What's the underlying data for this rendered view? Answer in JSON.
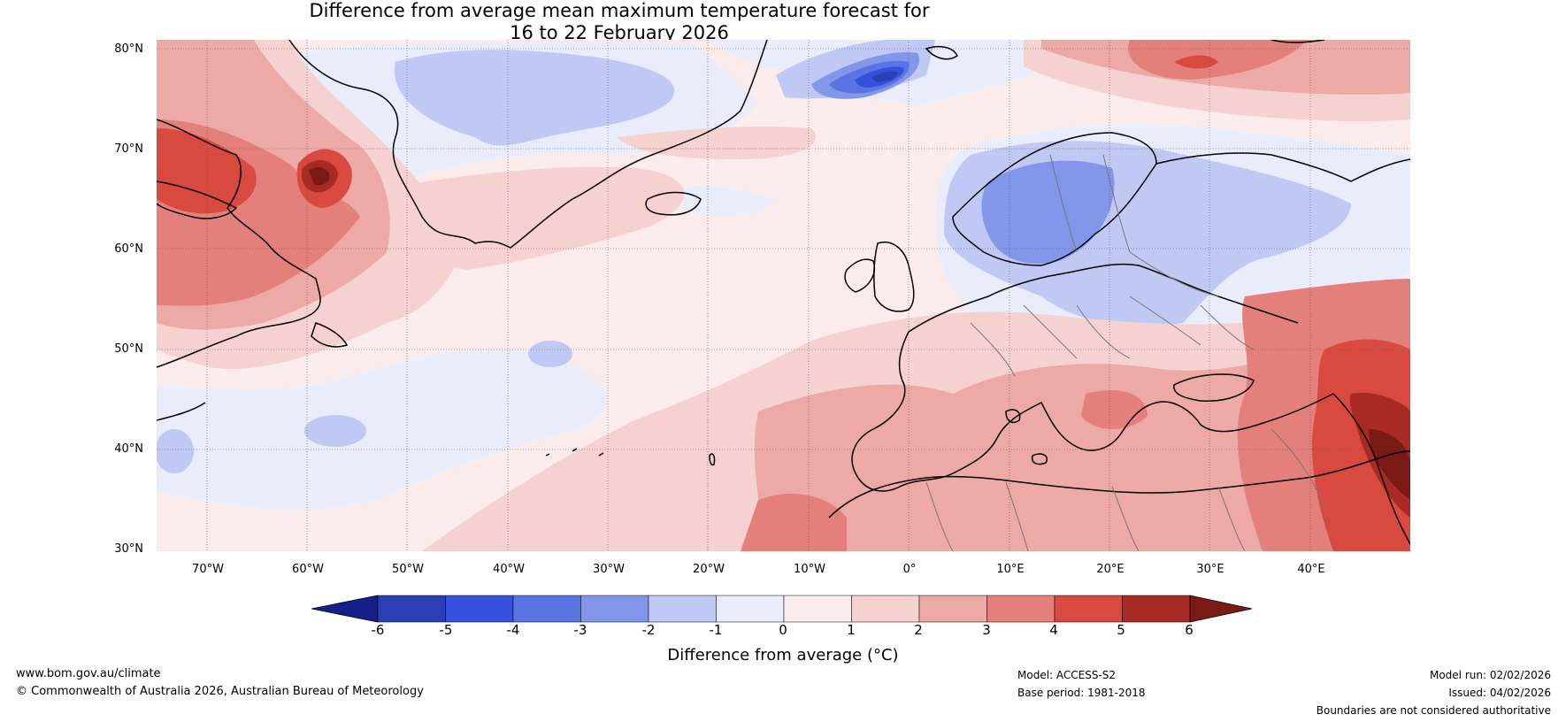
{
  "title": {
    "line1": "Difference from average mean maximum temperature forecast for",
    "line2": "16 to 22 February 2026"
  },
  "axes": {
    "lat_labels": [
      "80°N",
      "70°N",
      "60°N",
      "50°N",
      "40°N",
      "30°N"
    ],
    "lon_labels": [
      "70°W",
      "60°W",
      "50°W",
      "40°W",
      "30°W",
      "20°W",
      "10°W",
      "0°",
      "10°E",
      "20°E",
      "30°E",
      "40°E"
    ]
  },
  "colorbar": {
    "tick_labels": [
      "-6",
      "-5",
      "-4",
      "-3",
      "-2",
      "-1",
      "0",
      "1",
      "2",
      "3",
      "4",
      "5",
      "6"
    ],
    "colors": [
      "#16208a",
      "#2a3fb3",
      "#3450dd",
      "#5b74e3",
      "#8397ea",
      "#c0c9f3",
      "#e9ecfb",
      "#fbeceb",
      "#f5d2d0",
      "#eda9a6",
      "#e4807b",
      "#d8493f",
      "#a82a25",
      "#7a1a16"
    ],
    "title": "Difference from average (°C)"
  },
  "footer": {
    "website": "www.bom.gov.au/climate",
    "copyright": "© Commonwealth of Australia 2026, Australian Bureau of Meteorology",
    "model": "Model: ACCESS-S2",
    "base_period": "Base period: 1981-2018",
    "model_run": "Model run: 02/02/2026",
    "issued": "Issued: 04/02/2026",
    "disclaimer": "Boundaries are not considered authoritative"
  },
  "map_extent": {
    "lon_min": -75,
    "lon_max": 50,
    "lat_min": 30,
    "lat_max": 81
  },
  "anomaly_features": [
    {
      "name": "labrador-warm-core",
      "lon": -57,
      "lat": 67,
      "value": 6
    },
    {
      "name": "canada-warm",
      "lon": -70,
      "lat": 65,
      "value": 4
    },
    {
      "name": "svalbard-cold",
      "lon": -2,
      "lat": 77,
      "value": -4
    },
    {
      "name": "greenland-sea-cold",
      "lon": -40,
      "lat": 75,
      "value": -2
    },
    {
      "name": "scandinavia-cold",
      "lon": 15,
      "lat": 63,
      "value": -3
    },
    {
      "name": "east-arctic-warm",
      "lon": 30,
      "lat": 78,
      "value": 4
    },
    {
      "name": "middle-east-warm",
      "lon": 47,
      "lat": 36,
      "value": 6
    },
    {
      "name": "west-atlantic-cold",
      "lon": -55,
      "lat": 42,
      "value": -2
    }
  ]
}
